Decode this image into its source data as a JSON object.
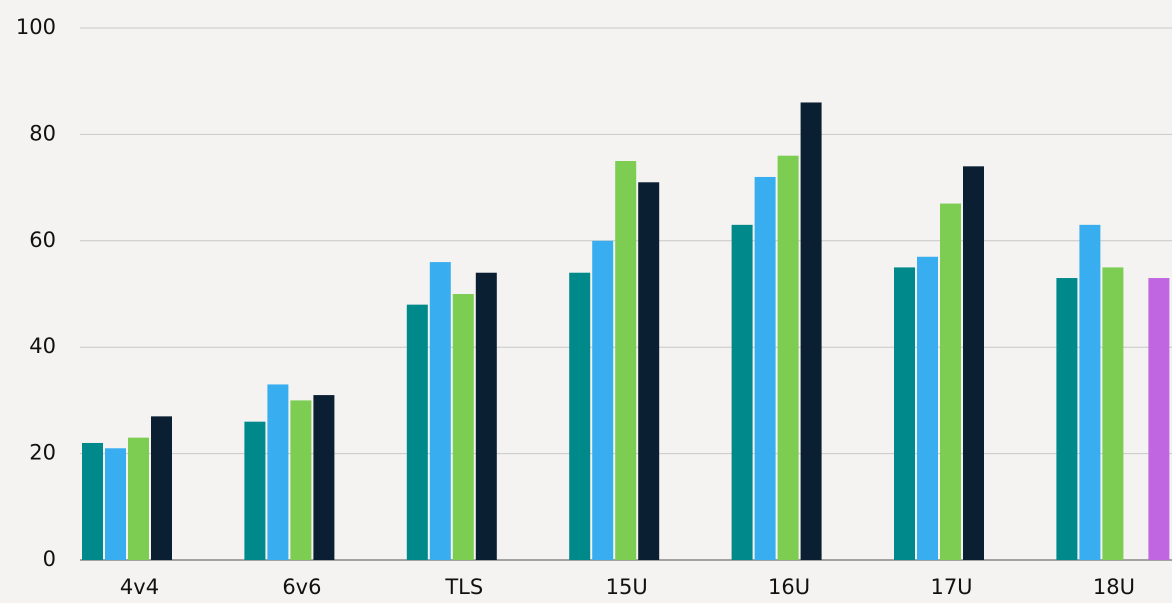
{
  "chart_data": {
    "type": "bar",
    "categories": [
      "4v4",
      "6v6",
      "TLS",
      "15U",
      "16U",
      "17U",
      "18U"
    ],
    "series": [
      {
        "color": "#00898a",
        "values": [
          22,
          26,
          48,
          54,
          63,
          55,
          53
        ]
      },
      {
        "color": "#38aef0",
        "values": [
          21,
          33,
          56,
          60,
          72,
          57,
          63
        ]
      },
      {
        "color": "#7ccd52",
        "values": [
          23,
          30,
          50,
          75,
          76,
          67,
          55
        ]
      },
      {
        "color": "#0b1f33",
        "values": [
          27,
          31,
          54,
          71,
          86,
          74,
          null
        ]
      },
      {
        "color": "#c066e0",
        "values": [
          null,
          null,
          null,
          null,
          null,
          null,
          53
        ]
      }
    ],
    "ylim": [
      0,
      100
    ],
    "yticks": [
      0,
      20,
      40,
      60,
      80,
      100
    ],
    "grid": true
  }
}
